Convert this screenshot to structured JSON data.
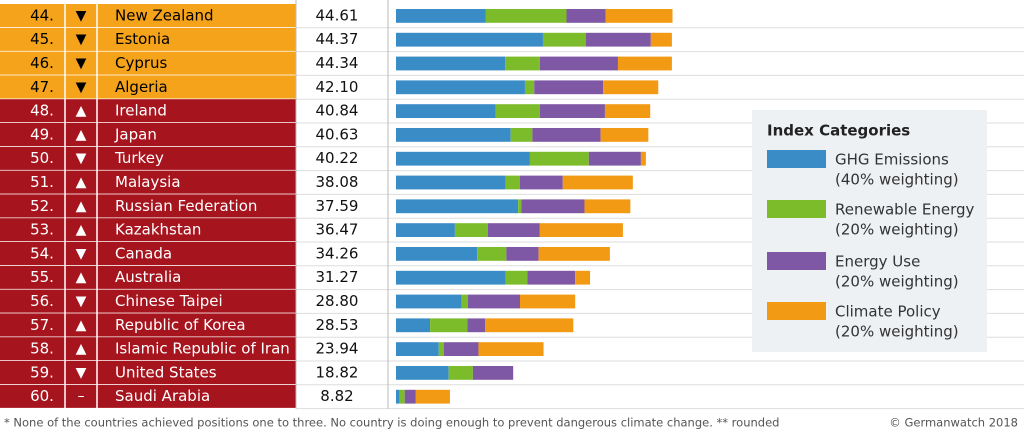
{
  "chart_data": {
    "type": "bar",
    "stacked": true,
    "ranks": [
      "44.",
      "45.",
      "46.",
      "47.",
      "48.",
      "49.",
      "50.",
      "51.",
      "52.",
      "53.",
      "54.",
      "55.",
      "56.",
      "57.",
      "58.",
      "59.",
      "60."
    ],
    "trends": [
      "▼",
      "▼",
      "▼",
      "▼",
      "▲",
      "▲",
      "▼",
      "▲",
      "▲",
      "▲",
      "▼",
      "▲",
      "▼",
      "▲",
      "▲",
      "▼",
      "–"
    ],
    "categories": [
      "New Zealand",
      "Estonia",
      "Cyprus",
      "Algeria",
      "Ireland",
      "Japan",
      "Turkey",
      "Malaysia",
      "Russian Federation",
      "Kazakhstan",
      "Canada",
      "Australia",
      "Chinese Taipei",
      "Republic of Korea",
      "Islamic Republic of Iran",
      "United States",
      "Saudi Arabia"
    ],
    "scores": [
      "44.61",
      "44.37",
      "44.34",
      "42.10",
      "40.84",
      "40.63",
      "40.22",
      "38.08",
      "37.59",
      "36.47",
      "34.26",
      "31.27",
      "28.80",
      "28.53",
      "23.94",
      "18.82",
      "8.82"
    ],
    "row_colors": [
      "#f5a31b",
      "#f5a31b",
      "#f5a31b",
      "#f5a31b",
      "#a6141e",
      "#a6141e",
      "#a6141e",
      "#a6141e",
      "#a6141e",
      "#a6141e",
      "#a6141e",
      "#a6141e",
      "#a6141e",
      "#a6141e",
      "#a6141e",
      "#a6141e",
      "#a6141e"
    ],
    "xlim": [
      0,
      50
    ],
    "legend_title": "Index Categories",
    "series": [
      {
        "name": "GHG Emissions",
        "note": "(40% weighting)",
        "color": "#3a8cc7",
        "values": [
          14.5,
          23.7,
          17.6,
          20.8,
          16.1,
          18.5,
          21.6,
          17.7,
          19.7,
          9.5,
          13.1,
          17.7,
          10.6,
          5.5,
          6.9,
          8.5,
          0.6
        ]
      },
      {
        "name": "Renewable Energy",
        "note": "(20% weighting)",
        "color": "#7cbc2a",
        "values": [
          13.0,
          6.9,
          5.6,
          1.5,
          7.1,
          3.5,
          9.5,
          2.3,
          0.5,
          5.3,
          4.7,
          3.5,
          1.0,
          6.0,
          0.8,
          3.9,
          0.8
        ]
      },
      {
        "name": "Energy Use",
        "note": "(20% weighting)",
        "color": "#7f58a5",
        "values": [
          6.3,
          10.5,
          12.6,
          11.1,
          10.5,
          11.0,
          8.4,
          6.9,
          10.2,
          8.4,
          5.2,
          7.7,
          8.4,
          2.9,
          5.6,
          6.5,
          1.8
        ]
      },
      {
        "name": "Climate Policy",
        "note": "(20% weighting)",
        "color": "#f39a14",
        "values": [
          10.8,
          3.4,
          8.7,
          8.9,
          7.3,
          7.7,
          0.8,
          11.3,
          7.4,
          13.4,
          11.5,
          2.4,
          8.9,
          14.2,
          10.5,
          0,
          5.5
        ]
      }
    ],
    "footnote": "* None of the countries achieved positions one to three. No country is doing enough to prevent dangerous climate change.  ** rounded",
    "copyright": "© Germanwatch 2018"
  }
}
